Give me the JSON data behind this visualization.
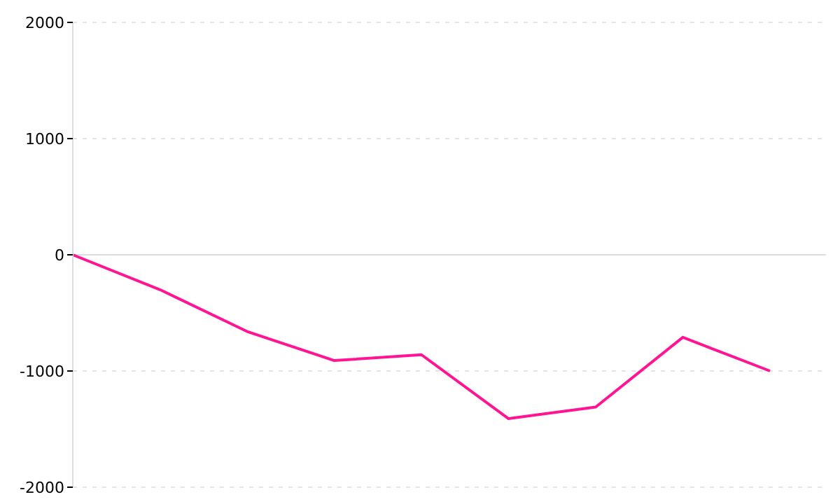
{
  "chart_data": {
    "type": "line",
    "categories": [
      null,
      null,
      null,
      null,
      null,
      null,
      null,
      null,
      null
    ],
    "series": [
      {
        "color": "#ff1493",
        "values": [
          0,
          -300,
          -660,
          -910,
          -860,
          -1410,
          -1310,
          -710,
          -1000
        ]
      }
    ],
    "ylim": [
      -2000,
      2000
    ],
    "yticks": [
      -2000,
      -1000,
      0,
      1000,
      2000
    ],
    "grid": "y",
    "marker": "none",
    "line_style": "solid"
  }
}
